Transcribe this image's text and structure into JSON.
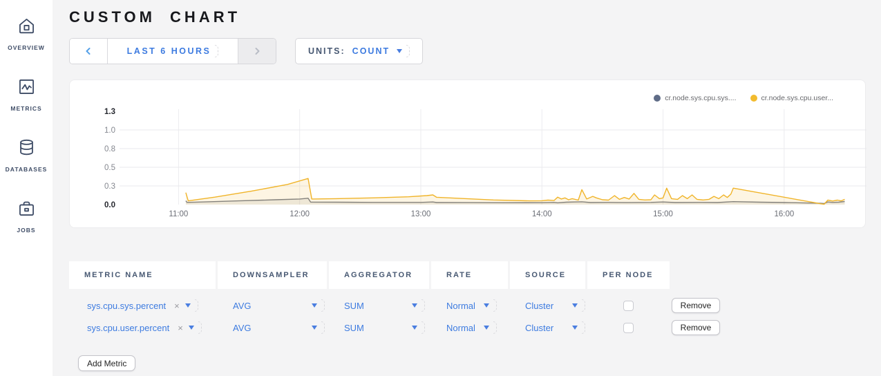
{
  "sidebar": {
    "items": [
      {
        "label": "OVERVIEW",
        "icon": "home-icon"
      },
      {
        "label": "METRICS",
        "icon": "metrics-icon"
      },
      {
        "label": "DATABASES",
        "icon": "database-icon"
      },
      {
        "label": "JOBS",
        "icon": "briefcase-icon"
      }
    ]
  },
  "header": {
    "title": "CUSTOM CHART"
  },
  "controls": {
    "time_range_label": "LAST 6 HOURS",
    "units_label": "UNITS:",
    "units_value": "COUNT"
  },
  "chart_data": {
    "type": "line",
    "x_domain": [
      10.53,
      16.52
    ],
    "y_domain": [
      0,
      1.25
    ],
    "grid": true,
    "legend_position": "top-right",
    "y_ticks": [
      {
        "v": 0,
        "label": "0.0",
        "bold": true,
        "line": false
      },
      {
        "v": 0.25,
        "label": "0.3",
        "bold": false,
        "line": true
      },
      {
        "v": 0.5,
        "label": "0.5",
        "bold": false,
        "line": true
      },
      {
        "v": 0.75,
        "label": "0.8",
        "bold": false,
        "line": true
      },
      {
        "v": 1.0,
        "label": "1.0",
        "bold": false,
        "line": true
      },
      {
        "v": 1.25,
        "label": "1.3",
        "bold": true,
        "line": false
      }
    ],
    "x_ticks": [
      {
        "h": 11,
        "label": "11:00"
      },
      {
        "h": 12,
        "label": "12:00"
      },
      {
        "h": 13,
        "label": "13:00"
      },
      {
        "h": 14,
        "label": "14:00"
      },
      {
        "h": 15,
        "label": "15:00"
      },
      {
        "h": 16,
        "label": "16:00"
      }
    ],
    "legend": [
      {
        "label": "cr.node.sys.cpu.sys....",
        "color": "#5f6c87"
      },
      {
        "label": "cr.node.sys.cpu.user...",
        "color": "#f2bb2e"
      }
    ],
    "series": [
      {
        "name": "cr.node.sys.cpu.sys.percent",
        "color": "#757b89",
        "fill": "rgba(117,123,137,0.12)",
        "points": [
          [
            11.06,
            0.05
          ],
          [
            11.07,
            0.03
          ],
          [
            11.2,
            0.035
          ],
          [
            11.5,
            0.05
          ],
          [
            11.8,
            0.065
          ],
          [
            12.0,
            0.075
          ],
          [
            12.07,
            0.085
          ],
          [
            12.09,
            0.033
          ],
          [
            12.3,
            0.032
          ],
          [
            12.6,
            0.03
          ],
          [
            13.0,
            0.03
          ],
          [
            13.1,
            0.035
          ],
          [
            13.13,
            0.028
          ],
          [
            13.4,
            0.027
          ],
          [
            13.7,
            0.025
          ],
          [
            14.0,
            0.026
          ],
          [
            14.1,
            0.03
          ],
          [
            14.13,
            0.024
          ],
          [
            14.2,
            0.032
          ],
          [
            14.33,
            0.038
          ],
          [
            14.4,
            0.028
          ],
          [
            14.55,
            0.03
          ],
          [
            14.7,
            0.027
          ],
          [
            14.9,
            0.03
          ],
          [
            15.0,
            0.035
          ],
          [
            15.1,
            0.028
          ],
          [
            15.3,
            0.03
          ],
          [
            15.45,
            0.028
          ],
          [
            15.58,
            0.04
          ],
          [
            15.8,
            0.032
          ],
          [
            16.0,
            0.028
          ],
          [
            16.1,
            0.025
          ],
          [
            16.3,
            0.018
          ],
          [
            16.33,
            0.015
          ],
          [
            16.36,
            0.035
          ],
          [
            16.4,
            0.03
          ],
          [
            16.45,
            0.032
          ],
          [
            16.5,
            0.042
          ]
        ]
      },
      {
        "name": "cr.node.sys.cpu.user.percent",
        "color": "#f0b429",
        "fill": "rgba(240,180,41,0.13)",
        "points": [
          [
            11.06,
            0.16
          ],
          [
            11.08,
            0.05
          ],
          [
            11.3,
            0.1
          ],
          [
            11.6,
            0.18
          ],
          [
            11.9,
            0.27
          ],
          [
            12.07,
            0.35
          ],
          [
            12.1,
            0.075
          ],
          [
            12.3,
            0.08
          ],
          [
            12.6,
            0.09
          ],
          [
            12.9,
            0.105
          ],
          [
            13.05,
            0.12
          ],
          [
            13.1,
            0.13
          ],
          [
            13.13,
            0.098
          ],
          [
            13.3,
            0.085
          ],
          [
            13.6,
            0.062
          ],
          [
            13.9,
            0.05
          ],
          [
            14.0,
            0.052
          ],
          [
            14.05,
            0.06
          ],
          [
            14.1,
            0.055
          ],
          [
            14.13,
            0.1
          ],
          [
            14.16,
            0.075
          ],
          [
            14.19,
            0.09
          ],
          [
            14.22,
            0.065
          ],
          [
            14.25,
            0.08
          ],
          [
            14.3,
            0.06
          ],
          [
            14.33,
            0.2
          ],
          [
            14.37,
            0.075
          ],
          [
            14.42,
            0.11
          ],
          [
            14.45,
            0.09
          ],
          [
            14.5,
            0.065
          ],
          [
            14.55,
            0.06
          ],
          [
            14.6,
            0.12
          ],
          [
            14.64,
            0.07
          ],
          [
            14.68,
            0.095
          ],
          [
            14.72,
            0.075
          ],
          [
            14.76,
            0.15
          ],
          [
            14.8,
            0.07
          ],
          [
            14.85,
            0.062
          ],
          [
            14.9,
            0.065
          ],
          [
            14.93,
            0.13
          ],
          [
            14.97,
            0.08
          ],
          [
            15.0,
            0.09
          ],
          [
            15.03,
            0.22
          ],
          [
            15.07,
            0.08
          ],
          [
            15.12,
            0.07
          ],
          [
            15.16,
            0.12
          ],
          [
            15.2,
            0.08
          ],
          [
            15.24,
            0.13
          ],
          [
            15.28,
            0.07
          ],
          [
            15.33,
            0.062
          ],
          [
            15.38,
            0.07
          ],
          [
            15.42,
            0.11
          ],
          [
            15.46,
            0.08
          ],
          [
            15.5,
            0.13
          ],
          [
            15.53,
            0.095
          ],
          [
            15.56,
            0.14
          ],
          [
            15.58,
            0.22
          ],
          [
            16.3,
            0.012
          ],
          [
            16.33,
            0.005
          ],
          [
            16.36,
            0.06
          ],
          [
            16.4,
            0.048
          ],
          [
            16.44,
            0.06
          ],
          [
            16.47,
            0.05
          ],
          [
            16.5,
            0.07
          ]
        ]
      }
    ]
  },
  "table": {
    "headers": [
      "METRIC NAME",
      "DOWNSAMPLER",
      "AGGREGATOR",
      "RATE",
      "SOURCE",
      "PER NODE"
    ],
    "rows": [
      {
        "metric": "sys.cpu.sys.percent",
        "remove_x": "×",
        "downsampler": "AVG",
        "aggregator": "SUM",
        "rate": "Normal",
        "source": "Cluster",
        "per_node_checked": false,
        "remove_label": "Remove"
      },
      {
        "metric": "sys.cpu.user.percent",
        "remove_x": "×",
        "downsampler": "AVG",
        "aggregator": "SUM",
        "rate": "Normal",
        "source": "Cluster",
        "per_node_checked": false,
        "remove_label": "Remove"
      }
    ],
    "add_button": "Add Metric"
  },
  "colors": {
    "accent_blue": "#3d7be0",
    "slate": "#475872",
    "page_bg": "#f4f4f5",
    "grid_line": "#ececef",
    "tick_gray": "#84878f",
    "tick_bold": "#26282f"
  }
}
